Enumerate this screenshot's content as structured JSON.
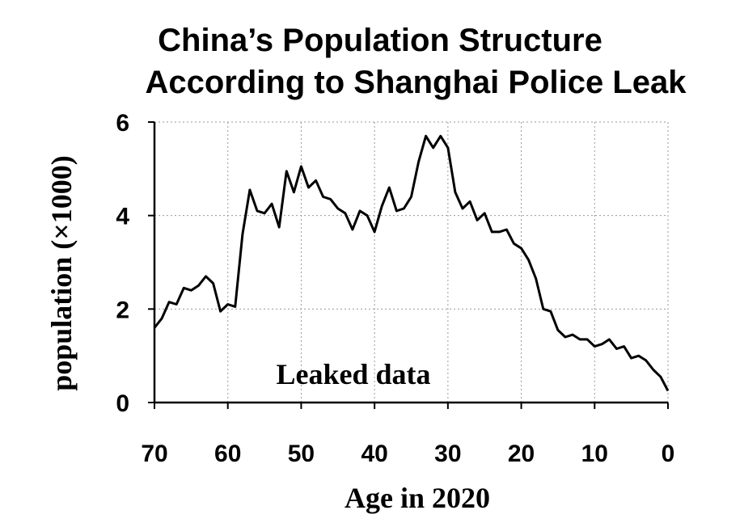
{
  "chart_data": {
    "type": "line",
    "title": "China’s Population Structure",
    "subtitle": "According to Shanghai Police Leak",
    "xlabel": "Age in 2020",
    "ylabel": "population (×1000)",
    "annotation": "Leaked data",
    "xlim": [
      70,
      0
    ],
    "ylim": [
      0,
      6
    ],
    "x_ticks": [
      "70",
      "60",
      "50",
      "40",
      "30",
      "20",
      "10",
      "0"
    ],
    "y_ticks": [
      "0",
      "2",
      "4",
      "6"
    ],
    "grid": true,
    "x_reversed": true,
    "line_color": "#000000",
    "series": [
      {
        "x": [
          70,
          69,
          68,
          67,
          66,
          65,
          64,
          63,
          62,
          61,
          60,
          59,
          58,
          57,
          56,
          55,
          54,
          53,
          52,
          51,
          50,
          49,
          48,
          47,
          46,
          45,
          44,
          43,
          42,
          41,
          40,
          39,
          38,
          37,
          36,
          35,
          34,
          33,
          32,
          31,
          30,
          29,
          28,
          27,
          26,
          25,
          24,
          23,
          22,
          21,
          20,
          19,
          18,
          17,
          16,
          15,
          14,
          13,
          12,
          11,
          10,
          9,
          8,
          7,
          6,
          5,
          4,
          3,
          2,
          1,
          0
        ],
        "y": [
          1.6,
          1.8,
          2.15,
          2.1,
          2.45,
          2.4,
          2.5,
          2.7,
          2.55,
          1.95,
          2.1,
          2.05,
          3.6,
          4.55,
          4.1,
          4.05,
          4.25,
          3.75,
          4.95,
          4.5,
          5.05,
          4.6,
          4.75,
          4.4,
          4.35,
          4.15,
          4.05,
          3.7,
          4.1,
          4.0,
          3.65,
          4.2,
          4.6,
          4.1,
          4.15,
          4.4,
          5.15,
          5.7,
          5.45,
          5.7,
          5.45,
          4.5,
          4.15,
          4.3,
          3.9,
          4.05,
          3.65,
          3.65,
          3.7,
          3.4,
          3.3,
          3.05,
          2.65,
          2.0,
          1.95,
          1.55,
          1.4,
          1.45,
          1.35,
          1.35,
          1.2,
          1.25,
          1.35,
          1.15,
          1.2,
          0.95,
          1.0,
          0.9,
          0.7,
          0.55,
          0.25
        ]
      }
    ]
  }
}
